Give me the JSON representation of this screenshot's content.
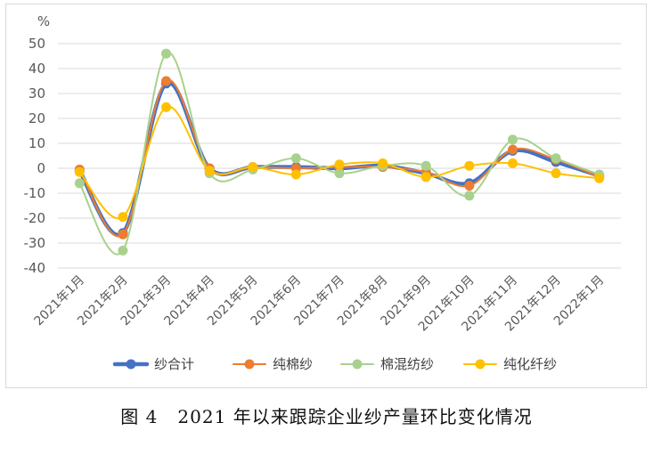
{
  "caption": "图 4   2021 年以来跟踪企业纱产量环比变化情况",
  "chart_data": {
    "type": "line",
    "unit_label": "%",
    "categories": [
      "2021年1月",
      "2021年2月",
      "2021年3月",
      "2021年4月",
      "2021年5月",
      "2021年6月",
      "2021年7月",
      "2021年8月",
      "2021年9月",
      "2021年10月",
      "2021年11月",
      "2021年12月",
      "2022年1月"
    ],
    "ylim": [
      -40,
      50
    ],
    "yticks": [
      50,
      40,
      30,
      20,
      10,
      0,
      -10,
      -20,
      -30,
      -40
    ],
    "grid": "horizontal",
    "legend_position": "bottom",
    "series": [
      {
        "name": "纱合计",
        "color": "#4472c4",
        "width": 4.5,
        "values": [
          -1,
          -26,
          34,
          0,
          0.5,
          0.5,
          0,
          1,
          -2,
          -6,
          7,
          2.5,
          -3
        ]
      },
      {
        "name": "纯棉纱",
        "color": "#ed7d31",
        "width": 2,
        "values": [
          -0.5,
          -26.5,
          35,
          0,
          0.5,
          0,
          0.5,
          0.5,
          -1.5,
          -7,
          7.5,
          3.5,
          -3.5
        ]
      },
      {
        "name": "棉混纺纱",
        "color": "#a9d18e",
        "width": 2,
        "values": [
          -6,
          -33,
          46,
          -2,
          -0.5,
          4,
          -2,
          1,
          1,
          -11,
          11.5,
          4,
          -2.5
        ]
      },
      {
        "name": "纯化纤纱",
        "color": "#ffc000",
        "width": 2,
        "values": [
          -1.5,
          -19.5,
          24.5,
          -1,
          0.5,
          -2.5,
          1.5,
          2,
          -3.5,
          1,
          2,
          -2,
          -4
        ]
      }
    ]
  }
}
